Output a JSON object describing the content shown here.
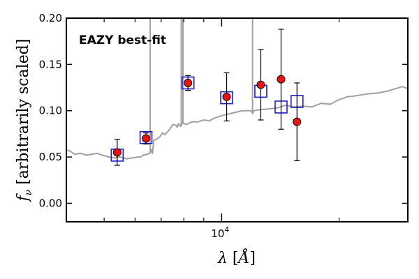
{
  "chart_data": {
    "type": "scatter",
    "xscale": "log",
    "xlim": [
      4000,
      30000
    ],
    "ylim": [
      -0.02,
      0.2
    ],
    "xlabel": "λ [Å]",
    "ylabel": "fν [arbitrarily scaled]",
    "x_tick_labels": [
      {
        "value": 10000,
        "label": "10",
        "exp": "4"
      }
    ],
    "y_ticks": [
      0.0,
      0.05,
      0.1,
      0.15,
      0.2
    ],
    "y_tick_labels": [
      "0.00",
      "0.05",
      "0.10",
      "0.15",
      "0.20"
    ],
    "annotation": "EAZY best-fit",
    "annotation_color": "#ee0000",
    "grid": false,
    "series": [
      {
        "role": "spectrum",
        "style": "line",
        "color": "#a0a0a0",
        "x": [
          4000,
          4100,
          4200,
          4350,
          4500,
          4650,
          4800,
          4950,
          5150,
          5300,
          5500,
          5700,
          5900,
          6100,
          6200,
          6300,
          6450,
          6550,
          6600,
          6650,
          6700,
          6800,
          6950,
          7050,
          7150,
          7300,
          7500,
          7650,
          7700,
          7750,
          7800,
          7850,
          7950,
          8100,
          8400,
          8700,
          9000,
          9300,
          9600,
          9900,
          10300,
          10800,
          11300,
          11900,
          12000,
          12100,
          12500,
          13200,
          13900,
          14600,
          15300,
          16200,
          17000,
          18000,
          19000,
          20000,
          21000,
          22000,
          23500,
          25000,
          26500,
          28000,
          29000,
          30000
        ],
        "y": [
          0.058,
          0.056,
          0.053,
          0.054,
          0.052,
          0.053,
          0.054,
          0.052,
          0.05,
          0.049,
          0.05,
          0.048,
          0.049,
          0.05,
          0.05,
          0.052,
          0.053,
          0.054,
          0.058,
          0.054,
          0.068,
          0.069,
          0.072,
          0.076,
          0.074,
          0.078,
          0.085,
          0.084,
          0.082,
          0.086,
          0.085,
          0.083,
          0.087,
          0.085,
          0.088,
          0.088,
          0.09,
          0.089,
          0.092,
          0.094,
          0.096,
          0.098,
          0.1,
          0.1,
          0.097,
          0.1,
          0.101,
          0.102,
          0.103,
          0.106,
          0.104,
          0.105,
          0.104,
          0.108,
          0.107,
          0.112,
          0.115,
          0.116,
          0.118,
          0.119,
          0.121,
          0.124,
          0.126,
          0.124
        ]
      },
      {
        "role": "emission-lines",
        "style": "vertical-spikes",
        "color": "#a0a0a0",
        "x": [
          6560,
          7880,
          7960,
          12000
        ],
        "y": [
          0.2,
          0.2,
          0.2,
          0.2
        ]
      },
      {
        "role": "model-photometry",
        "style": "open-square",
        "color": "#1c1ccc",
        "x": [
          5400,
          6400,
          8200,
          10300,
          12600,
          14200,
          15600
        ],
        "y": [
          0.052,
          0.071,
          0.13,
          0.114,
          0.121,
          0.104,
          0.11
        ]
      },
      {
        "role": "observed-photometry",
        "style": "filled-circle-errorbar",
        "color": "#ee1111",
        "x": [
          5400,
          6400,
          8200,
          10300,
          12600,
          14200,
          15600
        ],
        "y": [
          0.055,
          0.07,
          0.13,
          0.115,
          0.128,
          0.134,
          0.088
        ],
        "yerr": [
          0.014,
          0.006,
          0.008,
          0.026,
          0.038,
          0.054,
          0.042
        ]
      }
    ]
  }
}
